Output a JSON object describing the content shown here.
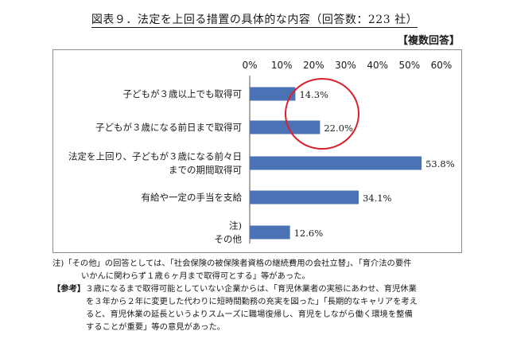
{
  "header": {
    "title": "図表９．法定を上回る措置の具体的な内容（回答数：223 社）",
    "multi_answer": "【複数回答】"
  },
  "chart_data": {
    "type": "bar",
    "orientation": "horizontal",
    "categories": [
      [
        "子どもが３歳以上でも取得可"
      ],
      [
        "子どもが３歳になる前日まで取得可"
      ],
      [
        "法定を上回り、子どもが３歳になる前々日",
        "までの期間取得可"
      ],
      [
        "有給や一定の手当を支給"
      ],
      [
        "注)",
        "その他"
      ]
    ],
    "values": [
      14.3,
      22.0,
      53.8,
      34.1,
      12.6
    ],
    "value_labels": [
      "14.3%",
      "22.0%",
      "53.8%",
      "34.1%",
      "12.6%"
    ],
    "xlim": [
      0,
      60
    ],
    "ticks": [
      "0%",
      "10%",
      "20%",
      "30%",
      "40%",
      "50%",
      "60%"
    ],
    "tick_values": [
      0,
      10,
      20,
      30,
      40,
      50,
      60
    ],
    "axis_position": "top",
    "grid": false,
    "legend": "none",
    "bar_color": "#4a72b5",
    "highlight_color": "#d9212b",
    "highlight_covers": [
      "14.3%",
      "22.0%"
    ]
  },
  "notes": {
    "note_line1": "注)「その他」の回答としては、「社会保険の被保険者資格の継続費用の会社立替」、「育介法の要件",
    "note_line2": "いかんに関わらず１歳６ヶ月まで取得可とする」等があった。",
    "ref_label": "【参考】",
    "ref_line1": "３歳になるまで取得可能としていない企業からは、「育児休業者の実態にあわせ、育児休業",
    "ref_line2": "を３年から２年に変更した代わりに短時間勤務の充実を図った」「長期的なキャリアを考え",
    "ref_line3": "ると、育児休業の延長というよりスムーズに職場復帰し、育児をしながら働く環境を整備",
    "ref_line4": "することが重要」等の意見があった。"
  }
}
